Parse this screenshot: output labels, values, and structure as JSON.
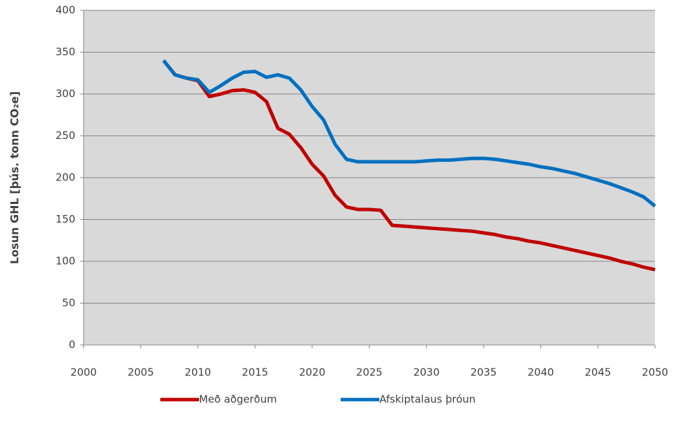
{
  "chart_data": {
    "type": "line",
    "y_label": "Losun GHL [þús. tonn CO₂e]",
    "x": [
      2007,
      2008,
      2009,
      2010,
      2011,
      2012,
      2013,
      2014,
      2015,
      2016,
      2017,
      2018,
      2019,
      2020,
      2021,
      2022,
      2023,
      2024,
      2025,
      2026,
      2027,
      2028,
      2029,
      2030,
      2031,
      2032,
      2033,
      2034,
      2035,
      2036,
      2037,
      2038,
      2039,
      2040,
      2041,
      2042,
      2043,
      2044,
      2045,
      2046,
      2047,
      2048,
      2049,
      2050
    ],
    "series": [
      {
        "name": "Með aðgerðum",
        "color": "#c00000",
        "values": [
          340,
          323,
          319,
          316,
          297,
          300,
          304,
          305,
          302,
          291,
          259,
          252,
          236,
          216,
          202,
          179,
          165,
          162,
          162,
          161,
          143,
          142,
          141,
          140,
          139,
          138,
          137,
          136,
          134,
          132,
          129,
          127,
          124,
          122,
          119,
          116,
          113,
          110,
          107,
          104,
          100,
          97,
          93,
          90
        ]
      },
      {
        "name": "Afskiptalaus þróun",
        "color": "#0070c0",
        "values": [
          340,
          323,
          319,
          317,
          302,
          310,
          319,
          326,
          327,
          320,
          323,
          319,
          305,
          285,
          269,
          240,
          222,
          219,
          219,
          219,
          219,
          219,
          219,
          220,
          221,
          221,
          222,
          223,
          223,
          222,
          220,
          218,
          216,
          213,
          211,
          208,
          205,
          201,
          197,
          193,
          188,
          183,
          177,
          166
        ]
      }
    ],
    "xlim": [
      2000,
      2050
    ],
    "xticks": [
      2000,
      2005,
      2010,
      2015,
      2020,
      2025,
      2030,
      2035,
      2040,
      2045,
      2050
    ],
    "ylim": [
      0,
      400
    ],
    "yticks": [
      0,
      50,
      100,
      150,
      200,
      250,
      300,
      350,
      400
    ],
    "grid": true,
    "legend": "bottom"
  }
}
